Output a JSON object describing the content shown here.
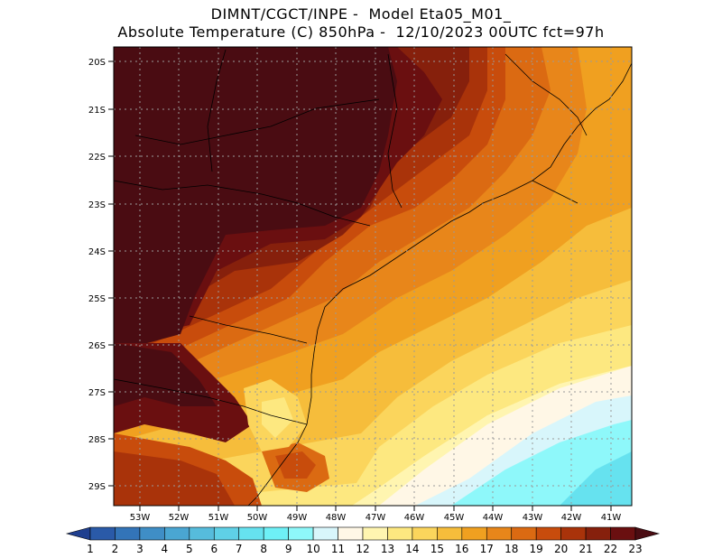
{
  "header": {
    "line1": "DIMNT/CGCT/INPE -  Model Eta05_M01_",
    "line2": "Absolute Temperature (C) 850hPa -  12/10/2023 00UTC fct=97h"
  },
  "map": {
    "lon_range": [
      -53.9,
      -40.6
    ],
    "lat_range": [
      -29.4,
      -19.9
    ],
    "lat_ticks": [
      "20S",
      "21S",
      "22S",
      "23S",
      "24S",
      "25S",
      "26S",
      "27S",
      "28S",
      "29S"
    ],
    "lon_ticks": [
      "53W",
      "52W",
      "51W",
      "50W",
      "49W",
      "48W",
      "47W",
      "46W",
      "45W",
      "44W",
      "43W",
      "42W",
      "41W"
    ],
    "grid": "dotted"
  },
  "colorbar": {
    "labels": [
      "1",
      "2",
      "3",
      "4",
      "5",
      "6",
      "7",
      "8",
      "9",
      "10",
      "11",
      "12",
      "13",
      "14",
      "15",
      "16",
      "17",
      "18",
      "19",
      "20",
      "21",
      "22",
      "23"
    ],
    "colors": [
      "#1f3f8f",
      "#2a5aa8",
      "#3374b8",
      "#3f8ec6",
      "#4aa6d2",
      "#56bcdc",
      "#5fd0e6",
      "#66e2ef",
      "#6ef0f6",
      "#8ef8fa",
      "#d8f6fb",
      "#fff7e6",
      "#fff5b0",
      "#fde880",
      "#fbd55c",
      "#f6bd3b",
      "#f0a020",
      "#e8861a",
      "#db6a12",
      "#c84c0c",
      "#a9330a",
      "#86200c",
      "#6a0f10",
      "#4a0c12"
    ]
  }
}
